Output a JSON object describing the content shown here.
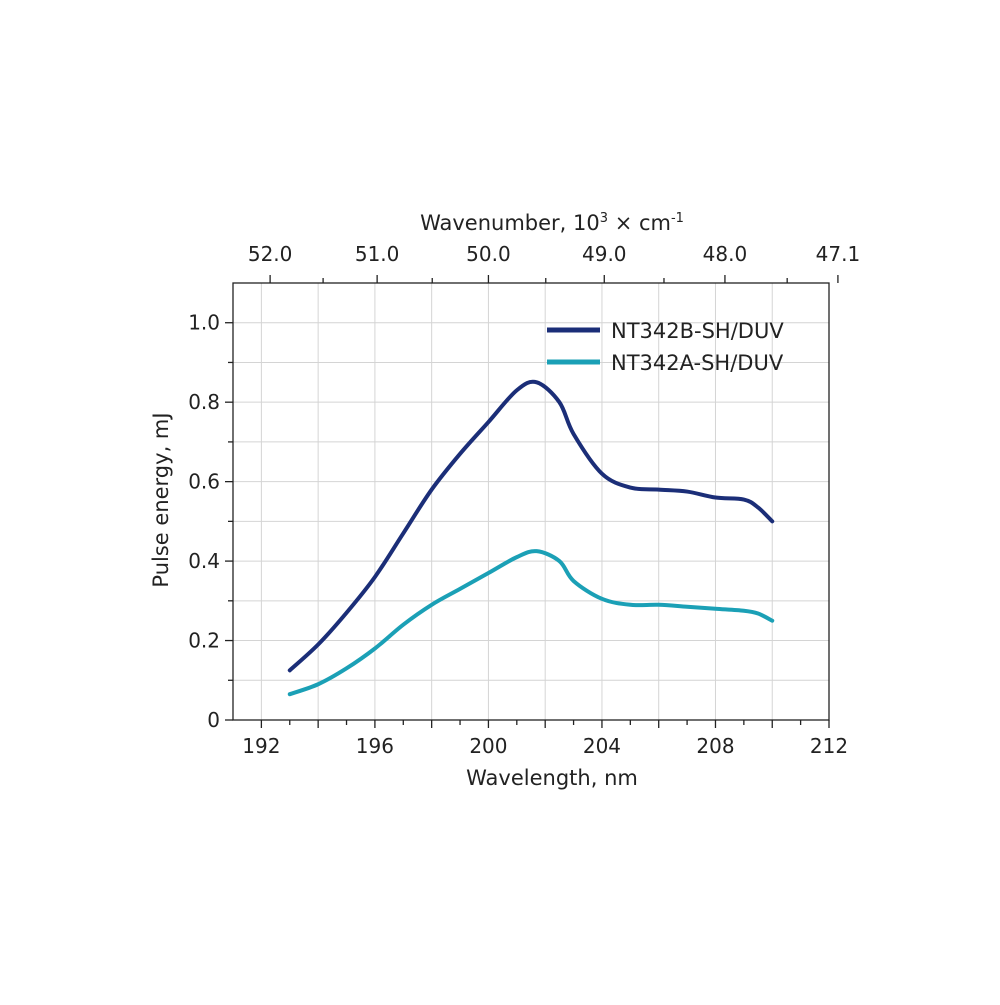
{
  "chart_data": {
    "type": "line",
    "xlabel": "Wavelength, nm",
    "ylabel": "Pulse energy, mJ",
    "top_axis_label": {
      "main": "Wavenumber, 10",
      "sup1": "3",
      "mid": " × cm",
      "sup2": "-1"
    },
    "xlim": [
      191,
      212
    ],
    "ylim": [
      0,
      1.1
    ],
    "x_ticks": [
      192,
      196,
      200,
      204,
      208,
      212
    ],
    "y_ticks": [
      0,
      0.2,
      0.4,
      0.6,
      0.8,
      1.0
    ],
    "y_tick_labels": [
      "0",
      "0.2",
      "0.4",
      "0.6",
      "0.8",
      "1.0"
    ],
    "top_ticks": [
      "52.0",
      "51.0",
      "50.0",
      "49.0",
      "48.0",
      "47.1"
    ],
    "grid": true,
    "legend_position": "top-right",
    "series": [
      {
        "name": "NT342B-SH/DUV",
        "color": "#1b2e78",
        "x": [
          193,
          194,
          195,
          196,
          197,
          198,
          199,
          200,
          201,
          201.7,
          202.5,
          203,
          204,
          205,
          206,
          207,
          208,
          209,
          209.5,
          210
        ],
        "y": [
          0.125,
          0.19,
          0.27,
          0.36,
          0.47,
          0.58,
          0.67,
          0.75,
          0.83,
          0.85,
          0.8,
          0.72,
          0.62,
          0.585,
          0.58,
          0.575,
          0.56,
          0.555,
          0.535,
          0.5
        ]
      },
      {
        "name": "NT342A-SH/DUV",
        "color": "#1ba0b6",
        "x": [
          193,
          194,
          195,
          196,
          197,
          198,
          199,
          200,
          201,
          201.7,
          202.5,
          203,
          204,
          205,
          206,
          207,
          208,
          209,
          209.5,
          210
        ],
        "y": [
          0.065,
          0.09,
          0.13,
          0.18,
          0.24,
          0.29,
          0.33,
          0.37,
          0.41,
          0.425,
          0.4,
          0.35,
          0.305,
          0.29,
          0.29,
          0.285,
          0.28,
          0.275,
          0.268,
          0.25
        ]
      }
    ]
  }
}
